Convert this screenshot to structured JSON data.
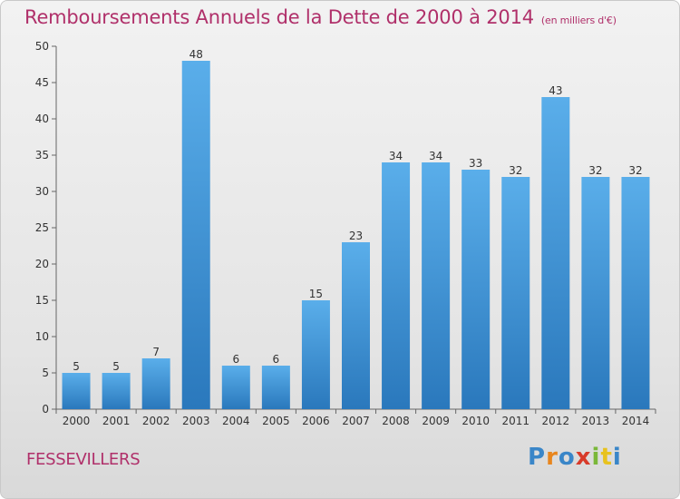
{
  "chart_data": {
    "type": "bar",
    "title": "Remboursements Annuels de la Dette de 2000 à 2014",
    "unit_note": "(en milliers d'€)",
    "categories": [
      "2000",
      "2001",
      "2002",
      "2003",
      "2004",
      "2005",
      "2006",
      "2007",
      "2008",
      "2009",
      "2010",
      "2011",
      "2012",
      "2013",
      "2014"
    ],
    "values": [
      5,
      5,
      7,
      48,
      6,
      6,
      15,
      23,
      34,
      34,
      33,
      32,
      43,
      32,
      32
    ],
    "ylim": [
      0,
      50
    ],
    "yticks": [
      0,
      5,
      10,
      15,
      20,
      25,
      30,
      35,
      40,
      45,
      50
    ],
    "xlabel": "",
    "ylabel": "",
    "grid": false,
    "bar_color": "#3e8fd4"
  },
  "footer": {
    "place": "FESSEVILLERS",
    "logo": [
      "P",
      "r",
      "o",
      "x",
      "i",
      "t",
      "i"
    ]
  },
  "colors": {
    "title": "#b0306a",
    "bar_top": "#5aaeea",
    "bar_bottom": "#2a78bc"
  }
}
